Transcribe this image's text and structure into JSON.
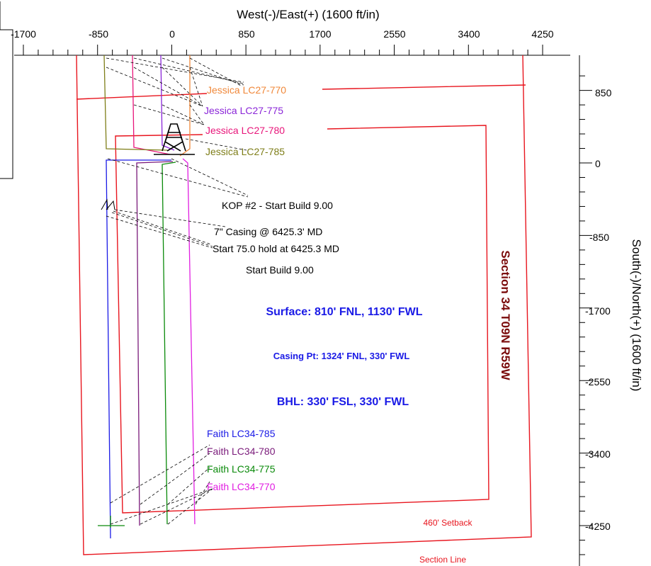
{
  "colors": {
    "section_line": "#e8151e",
    "setback": "#e8151e",
    "surface_text": "#1a1ae6",
    "section_text": "#7a0a0a",
    "leader": "#000000",
    "axis": "#000000"
  },
  "chart_data": {
    "type": "plan-view",
    "title": "",
    "xlabel": "West(-)/East(+) (1600 ft/in)",
    "ylabel": "South(-)/North(+) (1600 ft/in)",
    "xlim": [
      -1700,
      4250
    ],
    "ylim": [
      -4250,
      850
    ],
    "x_ticks": [
      "-1700",
      "-850",
      "0",
      "850",
      "1700",
      "2550",
      "3400",
      "4250"
    ],
    "y_ticks": [
      "850",
      "0",
      "-850",
      "-1700",
      "-2550",
      "-3400",
      "-4250"
    ],
    "grid": false,
    "legend": "none",
    "annotations": {
      "kop": "KOP #2 - Start Build 9.00",
      "casing": "7\" Casing @ 6425.3' MD",
      "hold": "Start 75.0 hold at 6425.3 MD",
      "build": "Start Build 9.00",
      "surface": "Surface: 810' FNL, 1130' FWL",
      "casing_pt": "Casing Pt: 1324' FNL, 330' FWL",
      "bhl": "BHL: 330' FSL, 330' FWL",
      "section": "Section 34 T09N R59W",
      "setback": "460' Setback",
      "section_line": "Section Line"
    },
    "wells": [
      {
        "name": "Jessica LC27-770",
        "color": "#f0883a"
      },
      {
        "name": "Jessica LC27-775",
        "color": "#8a25d8"
      },
      {
        "name": "Jessica LC27-780",
        "color": "#e8157a"
      },
      {
        "name": "Jessica LC27-785",
        "color": "#7e7e18"
      },
      {
        "name": "Faith LC34-785",
        "color": "#1a1ae6"
      },
      {
        "name": "Faith LC34-780",
        "color": "#7a1a7a"
      },
      {
        "name": "Faith LC34-775",
        "color": "#0a8a0a"
      },
      {
        "name": "Faith LC34-770",
        "color": "#e11ee1"
      }
    ]
  }
}
